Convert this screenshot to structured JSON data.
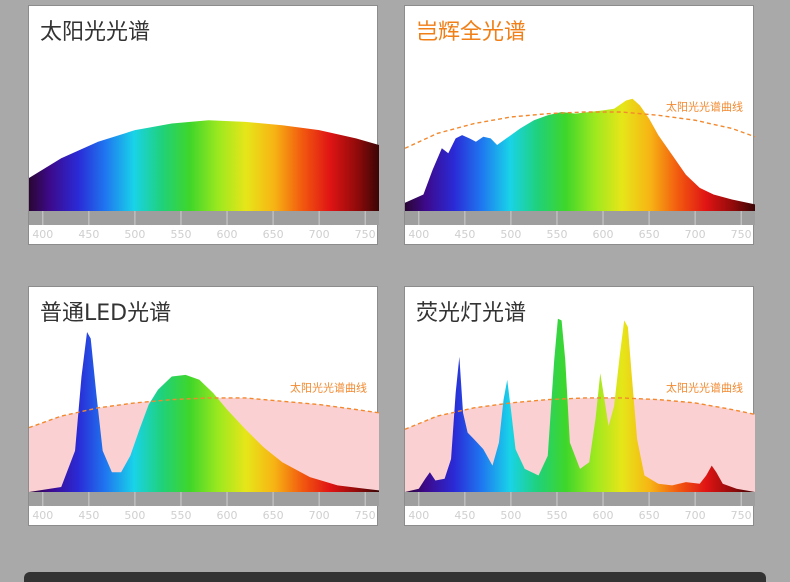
{
  "colors": {
    "background": "#a9a9a9",
    "axis_band": "#9e9e9e",
    "reference_line": "#f2892f",
    "reference_fill": "#fbd0d2",
    "highlight_title": "#f07f17"
  },
  "chart_data": [
    {
      "type": "area",
      "title": "太阳光光谱",
      "x_ticks": [
        400,
        450,
        500,
        550,
        600,
        650,
        700,
        750
      ],
      "xlim": [
        385,
        765
      ],
      "ylim": [
        0,
        1
      ],
      "series": [
        {
          "x": [
            385,
            420,
            460,
            500,
            540,
            580,
            620,
            660,
            700,
            740,
            765
          ],
          "y": [
            0.2,
            0.32,
            0.42,
            0.49,
            0.53,
            0.55,
            0.54,
            0.52,
            0.49,
            0.44,
            0.4
          ]
        }
      ]
    },
    {
      "type": "area",
      "title": "岂辉全光谱",
      "reference_label": "太阳光光谱曲线",
      "x_ticks": [
        400,
        450,
        500,
        550,
        600,
        650,
        700,
        750
      ],
      "xlim": [
        385,
        765
      ],
      "ylim": [
        0,
        1
      ],
      "reference": {
        "x": [
          385,
          420,
          460,
          500,
          540,
          580,
          620,
          660,
          700,
          740,
          765
        ],
        "y": [
          0.38,
          0.47,
          0.53,
          0.57,
          0.59,
          0.6,
          0.6,
          0.58,
          0.55,
          0.5,
          0.45
        ]
      },
      "series": [
        {
          "x": [
            385,
            405,
            415,
            425,
            432,
            440,
            447,
            455,
            462,
            470,
            478,
            485,
            495,
            510,
            525,
            540,
            555,
            570,
            585,
            600,
            612,
            625,
            632,
            640,
            650,
            660,
            675,
            690,
            705,
            720,
            740,
            765
          ],
          "y": [
            0.05,
            0.1,
            0.25,
            0.38,
            0.35,
            0.44,
            0.46,
            0.44,
            0.42,
            0.45,
            0.44,
            0.4,
            0.44,
            0.5,
            0.55,
            0.58,
            0.6,
            0.59,
            0.6,
            0.61,
            0.62,
            0.67,
            0.68,
            0.64,
            0.56,
            0.46,
            0.34,
            0.22,
            0.14,
            0.1,
            0.07,
            0.04
          ]
        }
      ]
    },
    {
      "type": "area",
      "title": "普通LED光谱",
      "reference_label": "太阳光光谱曲线",
      "x_ticks": [
        400,
        450,
        500,
        550,
        600,
        650,
        700,
        750
      ],
      "xlim": [
        385,
        765
      ],
      "ylim": [
        0,
        1
      ],
      "reference": {
        "x": [
          385,
          420,
          460,
          500,
          540,
          580,
          620,
          660,
          700,
          740,
          765
        ],
        "y": [
          0.39,
          0.46,
          0.51,
          0.54,
          0.56,
          0.57,
          0.57,
          0.55,
          0.53,
          0.5,
          0.48
        ]
      },
      "series": [
        {
          "x": [
            385,
            420,
            435,
            442,
            448,
            452,
            458,
            465,
            475,
            485,
            495,
            505,
            515,
            525,
            540,
            555,
            570,
            585,
            600,
            620,
            640,
            660,
            690,
            720,
            750,
            765
          ],
          "y": [
            0.0,
            0.03,
            0.25,
            0.7,
            0.97,
            0.93,
            0.6,
            0.25,
            0.12,
            0.12,
            0.22,
            0.38,
            0.53,
            0.62,
            0.7,
            0.71,
            0.68,
            0.6,
            0.5,
            0.38,
            0.27,
            0.18,
            0.09,
            0.04,
            0.02,
            0.01
          ]
        }
      ]
    },
    {
      "type": "area",
      "title": "荧光灯光谱",
      "reference_label": "太阳光光谱曲线",
      "x_ticks": [
        400,
        450,
        500,
        550,
        600,
        650,
        700,
        750
      ],
      "xlim": [
        385,
        765
      ],
      "ylim": [
        0,
        1
      ],
      "reference": {
        "x": [
          385,
          420,
          460,
          500,
          540,
          580,
          620,
          660,
          700,
          740,
          765
        ],
        "y": [
          0.38,
          0.46,
          0.51,
          0.54,
          0.56,
          0.57,
          0.57,
          0.56,
          0.54,
          0.5,
          0.47
        ]
      },
      "series": [
        {
          "x": [
            385,
            400,
            407,
            412,
            418,
            428,
            435,
            440,
            444,
            448,
            453,
            460,
            470,
            480,
            487,
            492,
            496,
            500,
            505,
            515,
            530,
            540,
            547,
            551,
            555,
            559,
            564,
            575,
            585,
            592,
            597,
            601,
            606,
            612,
            618,
            623,
            627,
            631,
            637,
            645,
            660,
            675,
            690,
            705,
            712,
            718,
            723,
            730,
            745,
            765
          ],
          "y": [
            0.0,
            0.02,
            0.08,
            0.12,
            0.07,
            0.08,
            0.2,
            0.6,
            0.82,
            0.48,
            0.36,
            0.32,
            0.26,
            0.16,
            0.3,
            0.56,
            0.68,
            0.5,
            0.26,
            0.14,
            0.1,
            0.22,
            0.8,
            1.05,
            1.04,
            0.8,
            0.3,
            0.14,
            0.18,
            0.45,
            0.72,
            0.58,
            0.4,
            0.52,
            0.82,
            1.04,
            1.0,
            0.72,
            0.32,
            0.1,
            0.05,
            0.04,
            0.06,
            0.05,
            0.1,
            0.16,
            0.12,
            0.05,
            0.02,
            0.0
          ]
        }
      ]
    }
  ]
}
